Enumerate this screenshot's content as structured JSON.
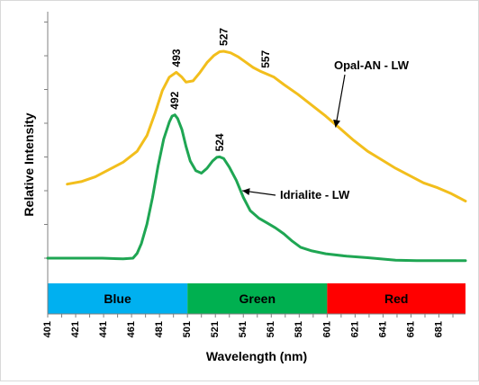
{
  "chart_data": {
    "type": "line",
    "xlabel": "Wavelength (nm)",
    "ylabel": "Relative Intensity",
    "xlim": [
      401,
      700
    ],
    "ylim": [
      0,
      1.0
    ],
    "x_ticks": [
      401,
      421,
      441,
      461,
      481,
      501,
      521,
      541,
      561,
      581,
      601,
      621,
      641,
      661,
      681
    ],
    "grid": false,
    "series": [
      {
        "name": "Opal-AN - LW",
        "color": "#f2be1c",
        "points": [
          [
            415,
            0.305
          ],
          [
            425,
            0.315
          ],
          [
            435,
            0.335
          ],
          [
            445,
            0.365
          ],
          [
            455,
            0.395
          ],
          [
            465,
            0.44
          ],
          [
            472,
            0.505
          ],
          [
            478,
            0.6
          ],
          [
            483,
            0.69
          ],
          [
            488,
            0.745
          ],
          [
            493,
            0.765
          ],
          [
            497,
            0.745
          ],
          [
            500,
            0.725
          ],
          [
            505,
            0.73
          ],
          [
            510,
            0.765
          ],
          [
            515,
            0.805
          ],
          [
            520,
            0.835
          ],
          [
            524,
            0.85
          ],
          [
            527,
            0.852
          ],
          [
            532,
            0.845
          ],
          [
            537,
            0.83
          ],
          [
            542,
            0.81
          ],
          [
            548,
            0.785
          ],
          [
            553,
            0.77
          ],
          [
            557,
            0.76
          ],
          [
            563,
            0.745
          ],
          [
            570,
            0.715
          ],
          [
            580,
            0.675
          ],
          [
            590,
            0.63
          ],
          [
            600,
            0.585
          ],
          [
            610,
            0.535
          ],
          [
            620,
            0.485
          ],
          [
            630,
            0.44
          ],
          [
            640,
            0.405
          ],
          [
            650,
            0.37
          ],
          [
            660,
            0.34
          ],
          [
            670,
            0.31
          ],
          [
            680,
            0.29
          ],
          [
            690,
            0.265
          ],
          [
            700,
            0.235
          ]
        ]
      },
      {
        "name": "Idrialite - LW",
        "color": "#1fa653",
        "points": [
          [
            401,
            0.0
          ],
          [
            405,
            0.0
          ],
          [
            420,
            0.0
          ],
          [
            440,
            0.0
          ],
          [
            455,
            -0.003
          ],
          [
            462,
            0.0
          ],
          [
            465,
            0.02
          ],
          [
            468,
            0.06
          ],
          [
            472,
            0.14
          ],
          [
            476,
            0.25
          ],
          [
            480,
            0.38
          ],
          [
            484,
            0.49
          ],
          [
            488,
            0.56
          ],
          [
            490,
            0.585
          ],
          [
            492,
            0.59
          ],
          [
            494,
            0.575
          ],
          [
            497,
            0.53
          ],
          [
            500,
            0.46
          ],
          [
            503,
            0.4
          ],
          [
            507,
            0.36
          ],
          [
            511,
            0.35
          ],
          [
            515,
            0.37
          ],
          [
            519,
            0.4
          ],
          [
            522,
            0.415
          ],
          [
            524,
            0.417
          ],
          [
            527,
            0.41
          ],
          [
            531,
            0.375
          ],
          [
            536,
            0.32
          ],
          [
            541,
            0.25
          ],
          [
            546,
            0.195
          ],
          [
            552,
            0.165
          ],
          [
            558,
            0.145
          ],
          [
            564,
            0.125
          ],
          [
            570,
            0.1
          ],
          [
            576,
            0.07
          ],
          [
            582,
            0.045
          ],
          [
            590,
            0.03
          ],
          [
            600,
            0.018
          ],
          [
            615,
            0.008
          ],
          [
            630,
            0.002
          ],
          [
            650,
            -0.008
          ],
          [
            665,
            -0.01
          ],
          [
            680,
            -0.01
          ],
          [
            700,
            -0.01
          ]
        ]
      }
    ],
    "peak_labels": [
      {
        "text": "493",
        "x": 493,
        "y": 0.765,
        "series": 0
      },
      {
        "text": "527",
        "x": 527,
        "y": 0.852,
        "series": 0
      },
      {
        "text": "557",
        "x": 557,
        "y": 0.76,
        "series": 0
      },
      {
        "text": "492",
        "x": 492,
        "y": 0.59,
        "series": 1
      },
      {
        "text": "524",
        "x": 524,
        "y": 0.417,
        "series": 1
      }
    ],
    "annotations": [
      {
        "text": "Opal-AN - LW",
        "series": 0,
        "target_x": 607
      },
      {
        "text": "Idrialite - LW",
        "series": 1,
        "target_x": 539
      }
    ],
    "color_bands": [
      {
        "label": "Blue",
        "from": 401,
        "to": 501,
        "color": "#00b0f0"
      },
      {
        "label": "Green",
        "from": 501,
        "to": 601,
        "color": "#00b050"
      },
      {
        "label": "Red",
        "from": 601,
        "to": 700,
        "color": "#ff0000"
      }
    ]
  }
}
